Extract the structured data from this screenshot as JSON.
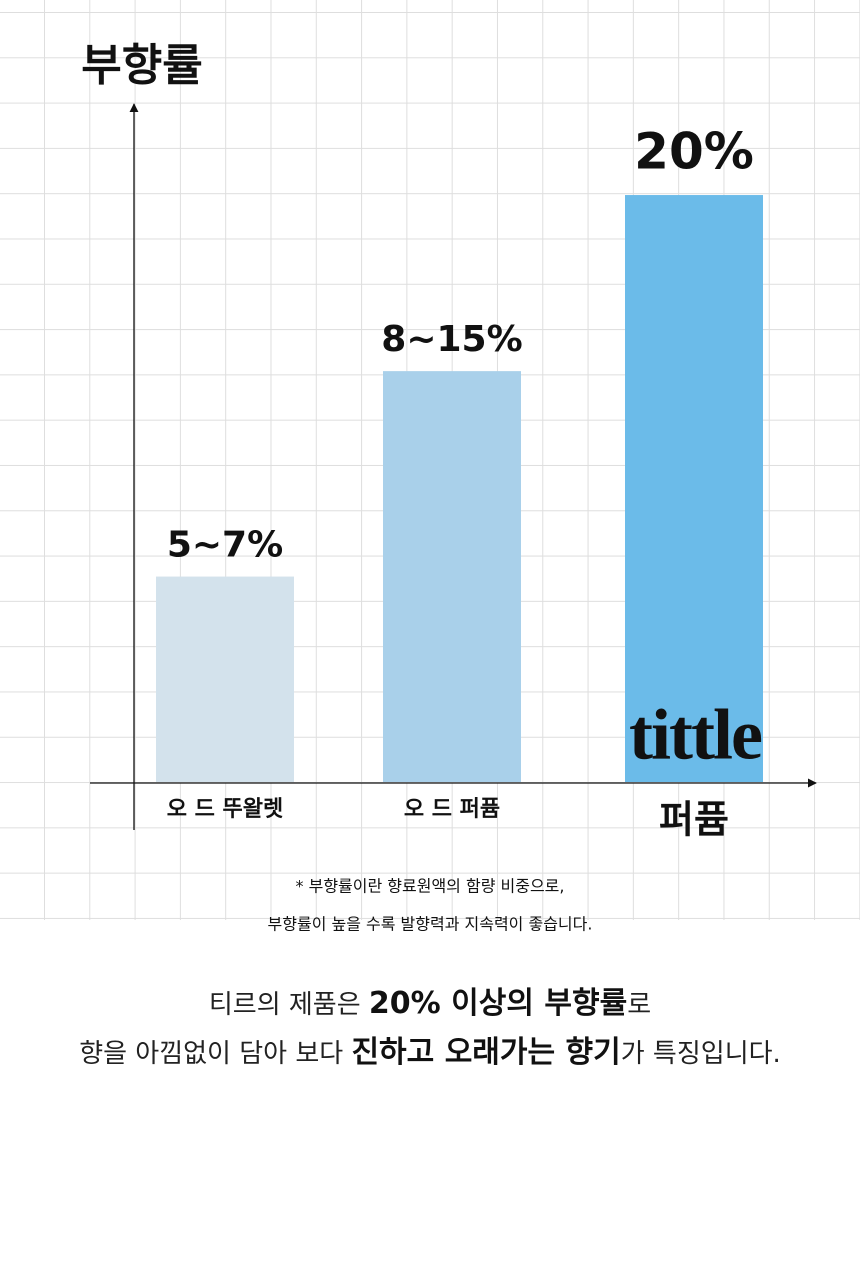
{
  "chart_data": {
    "type": "bar",
    "y_label": "부향률",
    "categories": [
      "오 드 뚜왈렛",
      "오 드 퍼퓸",
      "퍼퓸"
    ],
    "values": [
      7,
      14,
      20
    ],
    "value_labels": [
      "5~7%",
      "8~15%",
      "20%"
    ],
    "colors": [
      "#d3e2ec",
      "#a9d0ea",
      "#6bbbe9"
    ],
    "ylim": [
      0,
      23
    ],
    "logo": "tittle",
    "notes": [
      "* 부향률이란 향료원액의 함량 비중으로,",
      "부향률이 높을 수록 발향력과 지속력이 좋습니다."
    ]
  },
  "description": {
    "lines": [
      [
        {
          "text": "티르의 제품은 ",
          "bold": false
        },
        {
          "text": "20% 이상의 부향률",
          "bold": true
        },
        {
          "text": "로",
          "bold": false
        }
      ],
      [
        {
          "text": "향을 아낌없이 담아 보다 ",
          "bold": false
        },
        {
          "text": "진하고 오래가는 향기",
          "bold": true
        },
        {
          "text": "가 특징입니다.",
          "bold": false
        }
      ]
    ]
  }
}
